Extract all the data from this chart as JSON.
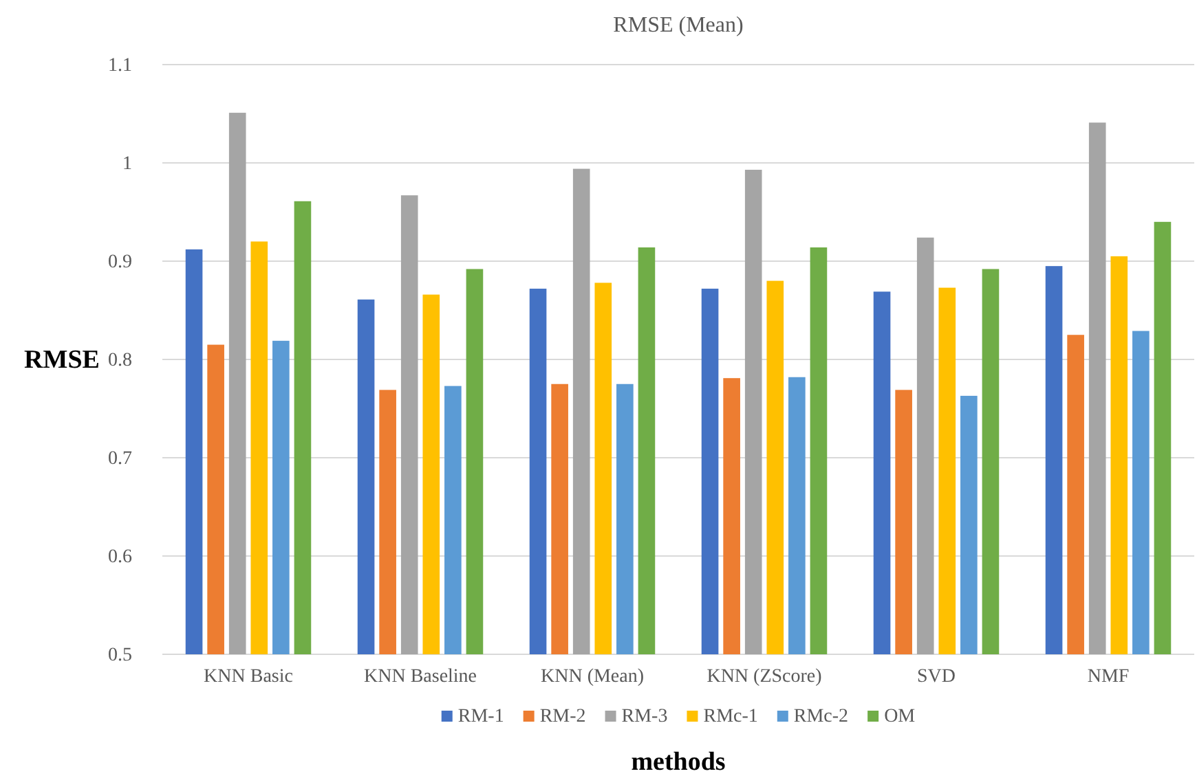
{
  "chart_data": {
    "type": "bar",
    "title": "RMSE (Mean)",
    "xlabel": "methods",
    "ylabel": "RMSE",
    "categories": [
      "KNN Basic",
      "KNN Baseline",
      "KNN (Mean)",
      "KNN (ZScore)",
      "SVD",
      "NMF"
    ],
    "series": [
      {
        "name": "RM-1",
        "color": "#4472c4",
        "values": [
          0.912,
          0.861,
          0.872,
          0.872,
          0.869,
          0.895
        ]
      },
      {
        "name": "RM-2",
        "color": "#ed7d31",
        "values": [
          0.815,
          0.769,
          0.775,
          0.781,
          0.769,
          0.825
        ]
      },
      {
        "name": "RM-3",
        "color": "#a5a5a5",
        "values": [
          1.051,
          0.967,
          0.994,
          0.993,
          0.924,
          1.041
        ]
      },
      {
        "name": "RMc-1",
        "color": "#ffc000",
        "values": [
          0.92,
          0.866,
          0.878,
          0.88,
          0.873,
          0.905
        ]
      },
      {
        "name": "RMc-2",
        "color": "#5b9bd5",
        "values": [
          0.819,
          0.773,
          0.775,
          0.782,
          0.763,
          0.829
        ]
      },
      {
        "name": "OM",
        "color": "#70ad47",
        "values": [
          0.961,
          0.892,
          0.914,
          0.914,
          0.892,
          0.94
        ]
      }
    ],
    "ylim": [
      0.5,
      1.1
    ],
    "yticks": [
      0.5,
      0.6,
      0.7,
      0.8,
      0.9,
      1,
      1.1
    ],
    "grid": "y",
    "legend": "bottom"
  }
}
